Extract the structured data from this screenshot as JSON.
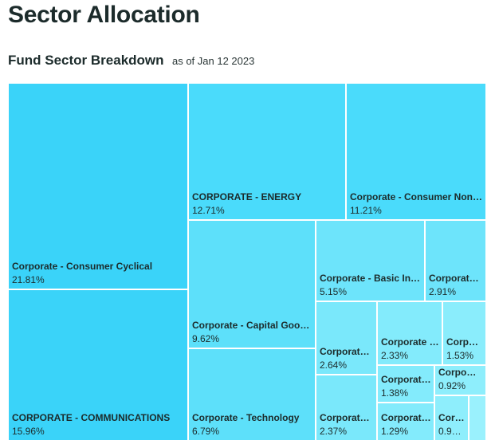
{
  "header": {
    "title": "Sector Allocation",
    "subtitle": "Fund Sector Breakdown",
    "as_of": "as of Jan 12 2023"
  },
  "chart_data": {
    "type": "treemap",
    "series": [
      {
        "name": "Corporate - Consumer Cyclical",
        "label": "Corporate - Consumer Cyclical",
        "value": 21.81,
        "display": "21.81%",
        "color": "#3ad3f9"
      },
      {
        "name": "CORPORATE - COMMUNICATIONS",
        "label": "CORPORATE - COMMUNICATIONS",
        "value": 15.96,
        "display": "15.96%",
        "color": "#3ad3f9"
      },
      {
        "name": "CORPORATE - ENERGY",
        "label": "CORPORATE - ENERGY",
        "value": 12.71,
        "display": "12.71%",
        "color": "#4adbfb"
      },
      {
        "name": "Corporate - Consumer Non-Cyclical",
        "label": "Corporate - Consumer Non…",
        "value": 11.21,
        "display": "11.21%",
        "color": "#4adbfb"
      },
      {
        "name": "Corporate - Capital Goods",
        "label": "Corporate - Capital Goo…",
        "value": 9.62,
        "display": "9.62%",
        "color": "#5de0fa"
      },
      {
        "name": "Corporate - Technology",
        "label": "Corporate - Technology",
        "value": 6.79,
        "display": "6.79%",
        "color": "#5de0fa"
      },
      {
        "name": "Corporate - Basic Industry",
        "label": "Corporate - Basic In…",
        "value": 5.15,
        "display": "5.15%",
        "color": "#6de4fb"
      },
      {
        "name": "Corporate - 2.91",
        "label": "Corporate…",
        "value": 2.91,
        "display": "2.91%",
        "color": "#6de4fb"
      },
      {
        "name": "Corporate - 2.64",
        "label": "Corporate…",
        "value": 2.64,
        "display": "2.64%",
        "color": "#7ae8fb"
      },
      {
        "name": "Corporate - 2.37",
        "label": "Corporate…",
        "value": 2.37,
        "display": "2.37%",
        "color": "#7ae8fb"
      },
      {
        "name": "Corporate - 2.33",
        "label": "Corporate …",
        "value": 2.33,
        "display": "2.33%",
        "color": "#83ebfc"
      },
      {
        "name": "Corporate - 1.53",
        "label": "Corpo…",
        "value": 1.53,
        "display": "1.53%",
        "color": "#8aedfc"
      },
      {
        "name": "Corporate - 1.38",
        "label": "Corporat…",
        "value": 1.38,
        "display": "1.38%",
        "color": "#83ebfc"
      },
      {
        "name": "Corporate - 1.29",
        "label": "Corporat…",
        "value": 1.29,
        "display": "1.29%",
        "color": "#83ebfc"
      },
      {
        "name": "Corporate - 0.92",
        "label": "Corpo…",
        "value": 0.92,
        "display": "0.92%",
        "color": "#8eeefc"
      },
      {
        "name": "Corporate - 0.9",
        "label": "Cor…",
        "value": 0.9,
        "display": "0.9…",
        "color": "#8eeefc"
      },
      {
        "name": "Unlabeled small sector",
        "label": "",
        "value": 0.4,
        "display": "",
        "color": "#9af1fd"
      }
    ]
  }
}
